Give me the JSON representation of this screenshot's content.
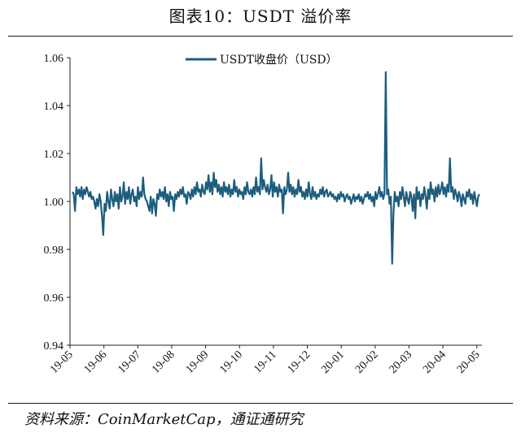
{
  "header": {
    "title": "图表10：USDT 溢价率"
  },
  "footer": {
    "source": "资料来源：CoinMarketCap，通证通研究"
  },
  "chart_data": {
    "type": "line",
    "title": "图表10：USDT 溢价率",
    "xlabel": "",
    "ylabel": "",
    "ylim": [
      0.94,
      1.06
    ],
    "yticks": [
      "1.06",
      "1.04",
      "1.02",
      "1.00",
      "0.98",
      "0.96",
      "0.94"
    ],
    "xticks": [
      "19-05",
      "19-06",
      "19-07",
      "19-08",
      "19-09",
      "19-10",
      "19-11",
      "19-12",
      "20-01",
      "20-02",
      "20-03",
      "20-04",
      "20-05"
    ],
    "legend": "top-center",
    "grid": false,
    "series": [
      {
        "name": "USDT收盘价（USD）",
        "color": "#1c5d7e",
        "values": [
          1.004,
          1.003,
          0.996,
          1.006,
          1.003,
          1.005,
          1.002,
          1.006,
          1.001,
          1.005,
          1.003,
          1.006,
          1.004,
          1.002,
          1.004,
          1.001,
          1.002,
          1.0,
          0.997,
          1.001,
          0.998,
          1.003,
          1.0,
          0.994,
          0.986,
          0.999,
          0.996,
          1.004,
          1.0,
          0.997,
          1.005,
          1.001,
          0.998,
          1.004,
          1.0,
          1.003,
          0.997,
          1.006,
          1.0,
          1.002,
          1.008,
          0.999,
          1.004,
          1.001,
          1.006,
          0.999,
          1.003,
          1.005,
          1.0,
          1.002,
          0.998,
          1.006,
          1.001,
          1.004,
          1.002,
          1.01,
          1.003,
          1.001,
          1.0,
          0.998,
          0.996,
          1.002,
          0.995,
          1.001,
          0.999,
          0.994,
          1.003,
          1.001,
          1.005,
          1.002,
          1.004,
          1.001,
          1.006,
          1.0,
          1.003,
          0.998,
          1.004,
          1.001,
          1.002,
          0.996,
          1.003,
          1.001,
          1.004,
          1.002,
          1.005,
          1.003,
          1.006,
          1.002,
          1.003,
          0.999,
          1.004,
          1.003,
          1.001,
          1.005,
          1.002,
          1.006,
          1.003,
          1.008,
          1.004,
          1.005,
          1.002,
          1.007,
          1.004,
          1.003,
          1.008,
          1.005,
          1.011,
          1.004,
          1.008,
          1.003,
          1.012,
          1.006,
          1.009,
          1.004,
          1.007,
          1.003,
          1.006,
          1.002,
          1.008,
          1.004,
          1.006,
          1.003,
          1.007,
          1.002,
          1.005,
          1.003,
          1.009,
          1.004,
          1.006,
          1.002,
          1.005,
          1.003,
          1.004,
          1.001,
          1.006,
          1.003,
          1.008,
          1.004,
          1.003,
          1.005,
          1.002,
          1.006,
          1.003,
          1.01,
          1.004,
          1.006,
          1.003,
          1.018,
          1.005,
          1.009,
          1.006,
          1.004,
          1.007,
          1.003,
          1.005,
          1.011,
          1.002,
          1.008,
          1.004,
          1.006,
          1.002,
          1.007,
          1.004,
          1.005,
          0.995,
          1.006,
          1.003,
          1.005,
          1.012,
          1.004,
          1.007,
          1.003,
          1.006,
          1.002,
          1.005,
          1.003,
          1.009,
          1.004,
          1.006,
          1.002,
          1.004,
          1.001,
          1.005,
          1.002,
          1.008,
          1.003,
          1.001,
          1.006,
          1.002,
          1.004,
          1.001,
          1.003,
          1.002,
          1.005,
          1.003,
          1.006,
          1.002,
          1.004,
          1.005,
          1.002,
          1.003,
          1.004,
          1.002,
          1.003,
          1.001,
          1.002,
          1.0,
          1.003,
          1.001,
          1.004,
          1.002,
          1.003,
          1.0,
          1.002,
          1.003,
          1.001,
          1.002,
          0.999,
          1.001,
          1.003,
          1.0,
          1.002,
          1.001,
          1.003,
          1.0,
          1.002,
          0.999,
          1.001,
          1.003,
          1.002,
          1.004,
          1.001,
          1.003,
          1.0,
          1.002,
          0.998,
          1.004,
          1.001,
          1.003,
          1.006,
          1.002,
          1.004,
          1.001,
          1.003,
          1.054,
          1.003,
          1.005,
          0.999,
          1.002,
          0.974,
          0.995,
          1.004,
          1.0,
          1.002,
          0.998,
          1.004,
          1.001,
          1.006,
          1.002,
          0.998,
          1.004,
          1.001,
          0.999,
          1.004,
          1.002,
          0.996,
          1.003,
          0.993,
          1.006,
          1.001,
          1.004,
          0.998,
          1.003,
          1.001,
          1.006,
          1.002,
          0.997,
          1.005,
          1.001,
          1.008,
          1.003,
          1.005,
          1.0,
          1.006,
          1.002,
          1.007,
          1.003,
          1.005,
          1.008,
          1.003,
          1.006,
          1.002,
          1.007,
          1.004,
          1.018,
          1.004,
          1.006,
          1.001,
          1.005,
          1.003,
          1.0,
          1.004,
          1.002,
          0.998,
          1.003,
          1.001,
          0.999,
          1.004,
          1.002,
          1.005,
          1.001,
          1.003,
          0.999,
          1.004,
          1.001,
          0.998,
          1.002,
          1.003
        ]
      }
    ]
  }
}
